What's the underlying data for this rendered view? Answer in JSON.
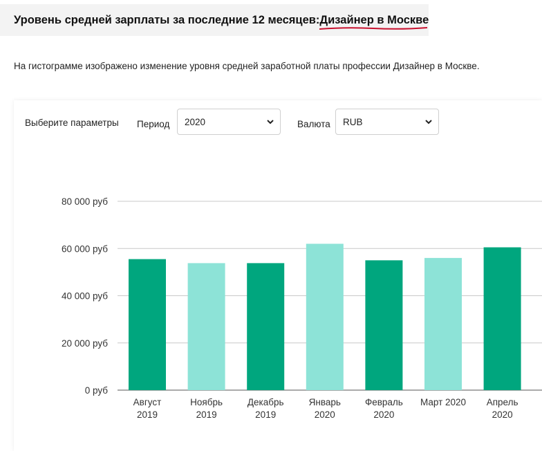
{
  "heading": {
    "prefix": "Уровень средней зарплаты за последние 12 месяцев: ",
    "link": "Дизайнер в Москве"
  },
  "description": "На гистограмме изображено изменение уровня средней заработной платы профессии Дизайнер в Москве.",
  "controls": {
    "params_label": "Выберите параметры",
    "period_label": "Период",
    "period_value": "2020",
    "currency_label": "Валюта",
    "currency_value": "RUB"
  },
  "colors": {
    "dark_bar": "#00a67e",
    "light_bar": "#8de3d7",
    "accent_underline": "#c8102e"
  },
  "chart_data": {
    "type": "bar",
    "categories": [
      [
        "Август",
        "2019"
      ],
      [
        "Ноябрь",
        "2019"
      ],
      [
        "Декабрь",
        "2019"
      ],
      [
        "Январь",
        "2020"
      ],
      [
        "Февраль",
        "2020"
      ],
      [
        "Март 2020"
      ],
      [
        "Апрель",
        "2020"
      ]
    ],
    "values": [
      55500,
      53800,
      53800,
      62000,
      55000,
      56000,
      60500
    ],
    "bar_shades": [
      "dark",
      "light",
      "dark",
      "light",
      "dark",
      "light",
      "dark"
    ],
    "yticks": [
      0,
      20000,
      40000,
      60000,
      80000
    ],
    "ytick_labels": [
      "0 руб",
      "20 000 руб",
      "40 000 руб",
      "60 000 руб",
      "80 000 руб"
    ],
    "ylim": [
      0,
      80000
    ],
    "grid": true,
    "legend": "none",
    "title": "",
    "xlabel": "",
    "ylabel": ""
  }
}
